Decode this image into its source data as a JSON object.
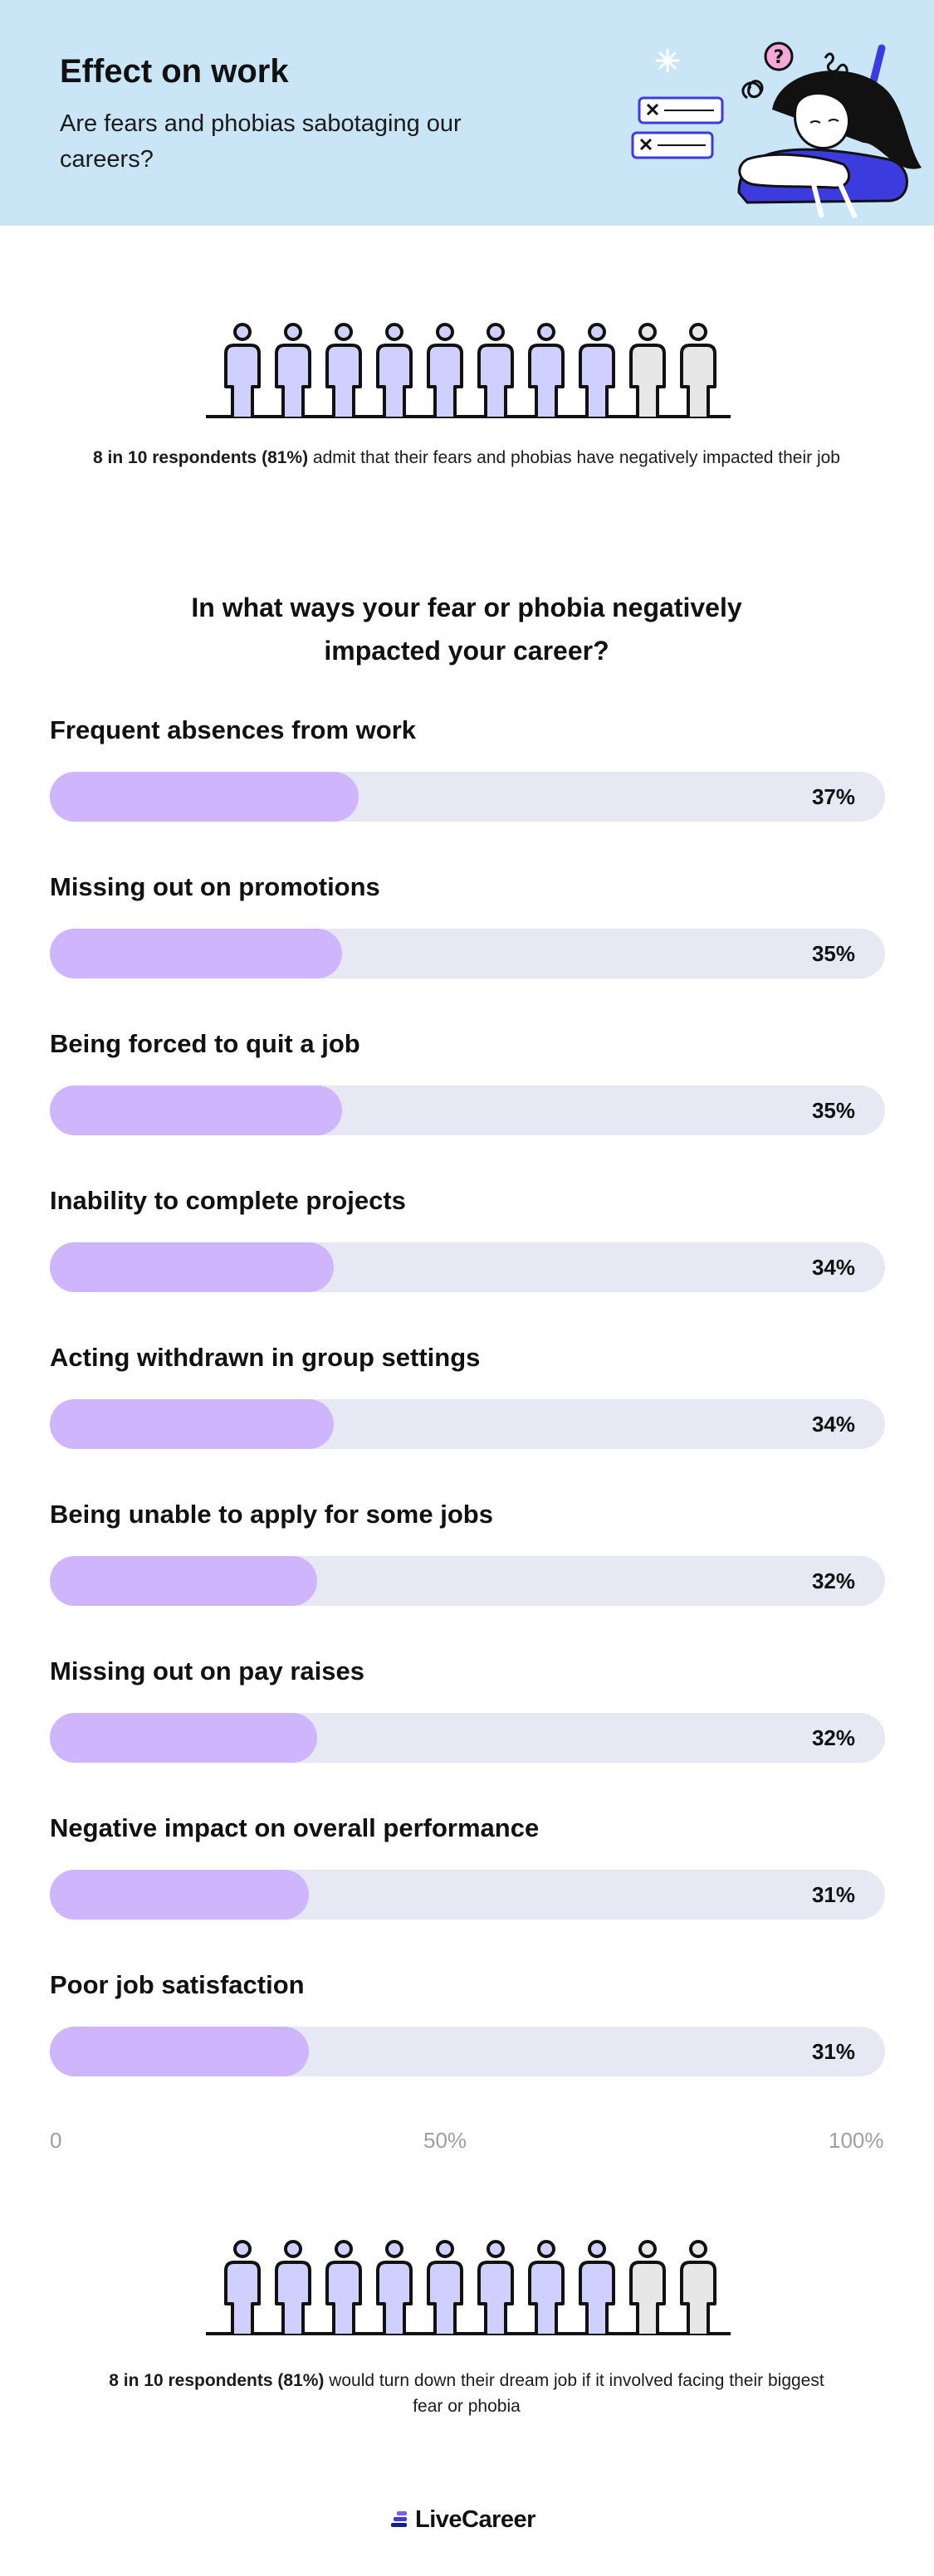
{
  "header": {
    "title": "Effect on work",
    "subtitle": "Are fears and phobias sabotaging our careers?"
  },
  "stat_1": {
    "bold": "8 in 10 respondents (81%)",
    "rest": " admit that their fears and phobias have negatively impacted their job",
    "filled": 8,
    "total": 10
  },
  "question": "In what ways your fear or phobia negatively impacted your career?",
  "chart_data": {
    "type": "bar",
    "orientation": "horizontal",
    "title": "In what ways your fear or phobia negatively impacted your career?",
    "categories": [
      "Frequent absences from work",
      "Missing out on promotions",
      "Being forced to quit a job",
      "Inability to complete projects",
      "Acting withdrawn in group settings",
      "Being unable to apply for some jobs",
      "Missing out on pay raises",
      "Negative impact on overall performance",
      "Poor job satisfaction"
    ],
    "values": [
      37,
      35,
      35,
      34,
      34,
      32,
      32,
      31,
      31
    ],
    "value_labels": [
      "37%",
      "35%",
      "35%",
      "34%",
      "34%",
      "32%",
      "32%",
      "31%",
      "31%"
    ],
    "xlim": [
      0,
      100
    ],
    "x_ticks": [
      "0",
      "50%",
      "100%"
    ],
    "grid": false,
    "legend": "none",
    "colors": {
      "fill": "#cfb5fb",
      "track": "#e6e9f4"
    }
  },
  "stat_2": {
    "bold": "8 in 10 respondents (81%)",
    "rest": " would turn down their dream job if it involved facing their biggest fear or phobia",
    "filled": 8,
    "total": 10
  },
  "colors": {
    "header_bg": "#c9e5f6",
    "figure_filled": "#cfd0ff",
    "figure_empty": "#e7e7e7",
    "accent_blue": "#3b3bde",
    "accent_pink": "#f3a8d8"
  },
  "footer": {
    "logo_text": "LiveCareer"
  }
}
